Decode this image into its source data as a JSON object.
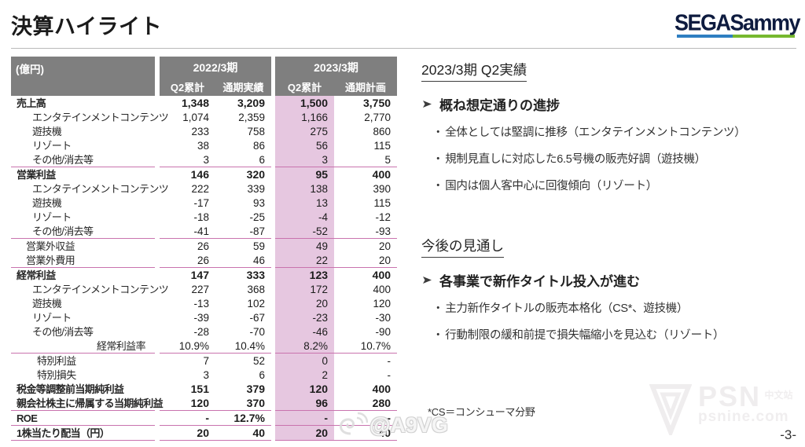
{
  "page": {
    "title": "決算ハイライト",
    "page_number": "-3-"
  },
  "logo": {
    "text": "SEGASammy",
    "bar_blue": "#2e7ec1",
    "bar_green": "#76b82f"
  },
  "table": {
    "unit_label": "(億円)",
    "col_groups": [
      {
        "label": "2022/3期",
        "cols": [
          "Q2累計",
          "通期実績"
        ]
      },
      {
        "label": "2023/3期",
        "cols": [
          "Q2累計",
          "通期計画"
        ]
      }
    ],
    "highlight_column": "2023/3期 Q2累計",
    "rows": [
      {
        "label": "売上高",
        "indent": 0,
        "bold": true,
        "line_below": false,
        "values": [
          "1,348",
          "3,209",
          "1,500",
          "3,750"
        ]
      },
      {
        "label": "エンタテインメントコンテンツ",
        "indent": 1,
        "bold": false,
        "line_below": false,
        "values": [
          "1,074",
          "2,359",
          "1,166",
          "2,770"
        ]
      },
      {
        "label": "遊技機",
        "indent": 1,
        "bold": false,
        "line_below": false,
        "values": [
          "233",
          "758",
          "275",
          "860"
        ]
      },
      {
        "label": "リゾート",
        "indent": 1,
        "bold": false,
        "line_below": false,
        "values": [
          "38",
          "86",
          "56",
          "115"
        ]
      },
      {
        "label": "その他/消去等",
        "indent": 1,
        "bold": false,
        "line_below": true,
        "values": [
          "3",
          "6",
          "3",
          "5"
        ]
      },
      {
        "label": "営業利益",
        "indent": 0,
        "bold": true,
        "line_below": false,
        "values": [
          "146",
          "320",
          "95",
          "400"
        ]
      },
      {
        "label": "エンタテインメントコンテンツ",
        "indent": 1,
        "bold": false,
        "line_below": false,
        "values": [
          "222",
          "339",
          "138",
          "390"
        ]
      },
      {
        "label": "遊技機",
        "indent": 1,
        "bold": false,
        "line_below": false,
        "values": [
          "-17",
          "93",
          "13",
          "115"
        ]
      },
      {
        "label": "リゾート",
        "indent": 1,
        "bold": false,
        "line_below": false,
        "values": [
          "-18",
          "-25",
          "-4",
          "-12"
        ]
      },
      {
        "label": "その他/消去等",
        "indent": 1,
        "bold": false,
        "line_below": true,
        "values": [
          "-41",
          "-87",
          "-52",
          "-93"
        ]
      },
      {
        "label": "営業外収益",
        "indent": 2,
        "bold": false,
        "line_below": false,
        "values": [
          "26",
          "59",
          "49",
          "20"
        ]
      },
      {
        "label": "営業外費用",
        "indent": 2,
        "bold": false,
        "line_below": true,
        "values": [
          "26",
          "46",
          "22",
          "20"
        ]
      },
      {
        "label": "経常利益",
        "indent": 0,
        "bold": true,
        "line_below": false,
        "values": [
          "147",
          "333",
          "123",
          "400"
        ]
      },
      {
        "label": "エンタテインメントコンテンツ",
        "indent": 1,
        "bold": false,
        "line_below": false,
        "values": [
          "227",
          "368",
          "172",
          "400"
        ]
      },
      {
        "label": "遊技機",
        "indent": 1,
        "bold": false,
        "line_below": false,
        "values": [
          "-13",
          "102",
          "20",
          "120"
        ]
      },
      {
        "label": "リゾート",
        "indent": 1,
        "bold": false,
        "line_below": false,
        "values": [
          "-39",
          "-67",
          "-23",
          "-30"
        ]
      },
      {
        "label": "その他/消去等",
        "indent": 1,
        "bold": false,
        "line_below": false,
        "values": [
          "-28",
          "-70",
          "-46",
          "-90"
        ]
      },
      {
        "label": "経常利益率",
        "indent": 1,
        "bold": false,
        "align": "right",
        "line_below": true,
        "values": [
          "10.9%",
          "10.4%",
          "8.2%",
          "10.7%"
        ]
      },
      {
        "label": "特別利益",
        "indent": 3,
        "bold": false,
        "line_below": false,
        "values": [
          "7",
          "52",
          "0",
          "-"
        ]
      },
      {
        "label": "特別損失",
        "indent": 3,
        "bold": false,
        "line_below": false,
        "values": [
          "3",
          "6",
          "2",
          "-"
        ]
      },
      {
        "label": "税金等調整前当期純利益",
        "indent": 0,
        "bold": true,
        "line_below": false,
        "values": [
          "151",
          "379",
          "120",
          "400"
        ]
      },
      {
        "label": "親会社株主に帰属する当期純利益",
        "indent": 0,
        "bold": true,
        "line_below": true,
        "values": [
          "120",
          "370",
          "96",
          "280"
        ]
      },
      {
        "label": "ROE",
        "indent": 0,
        "bold": true,
        "line_below": true,
        "values": [
          "-",
          "12.7%",
          "-",
          "-"
        ]
      },
      {
        "label": "1株当たり配当（円）",
        "indent": 0,
        "bold": true,
        "line_below": true,
        "values": [
          "20",
          "40",
          "20",
          "40"
        ]
      }
    ]
  },
  "right_panel": {
    "sections": [
      {
        "heading": "2023/3期 Q2実績",
        "point": "概ね想定通りの進捗",
        "bullets": [
          "全体としては堅調に推移（エンタテインメントコンテンツ）",
          "規制見直しに対応した6.5号機の販売好調（遊技機）",
          "国内は個人客中心に回復傾向（リゾート）"
        ]
      },
      {
        "heading": "今後の見通し",
        "point": "各事業で新作タイトル投入が進む",
        "bullets": [
          "主力新作タイトルの販売本格化（CS*、遊技機）",
          "行動制限の緩和前提で損失幅縮小を見込む（リゾート）"
        ]
      }
    ],
    "footnote": "*CS＝コンシューマ分野"
  },
  "watermarks": {
    "a9vg": "@A9VG",
    "psn_title": "PSN",
    "psn_sub": "中文站",
    "psn_site": "psnine.com"
  },
  "colors": {
    "header_gray": "#7f7f7f",
    "highlight_pink": "#e6c7e0",
    "separator_pink": "#c973ae"
  }
}
